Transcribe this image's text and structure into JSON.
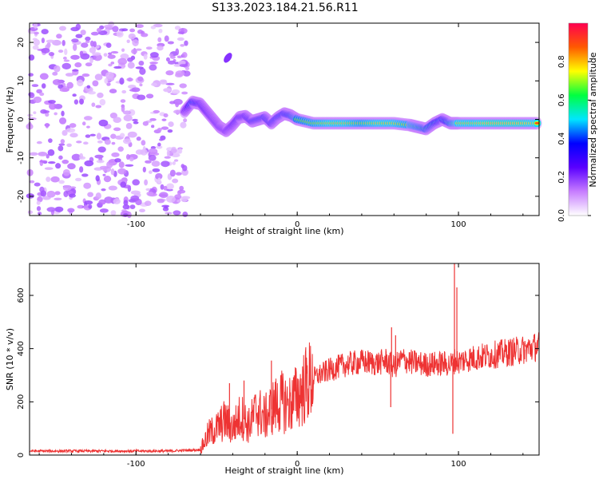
{
  "title": "S133.2023.184.21.56.R11",
  "chart_data": [
    {
      "type": "heatmap",
      "xlabel": "Height of straight line (km)",
      "ylabel": "Frequency (Hz)",
      "xlim": [
        -166,
        150
      ],
      "ylim": [
        -25,
        25
      ],
      "xticks": [
        -100,
        0,
        100
      ],
      "yticks": [
        -20,
        -10,
        0,
        10,
        20
      ],
      "colorbar": {
        "label": "Normalized spectral amplitude",
        "range": [
          0,
          1
        ],
        "ticks": [
          "0.0",
          "0.2",
          "0.4",
          "0.6",
          "0.8"
        ],
        "colormap": [
          "#ffffff",
          "#c77dff",
          "#5a00ff",
          "#0000ff",
          "#00e6ff",
          "#00ff40",
          "#ffff00",
          "#ff5a00",
          "#ff0050"
        ]
      },
      "noise_region": {
        "x": [
          -166,
          -68
        ],
        "amplitude": "low"
      },
      "ridge": {
        "x": [
          -70,
          -65,
          -60,
          -56,
          -52,
          -48,
          -44,
          -40,
          -36,
          -32,
          -28,
          -24,
          -20,
          -16,
          -12,
          -8,
          -4,
          0,
          10,
          20,
          30,
          40,
          50,
          60,
          70,
          75,
          80,
          85,
          90,
          95,
          100,
          110,
          120,
          130,
          140,
          150
        ],
        "y": [
          2,
          4.5,
          4,
          2,
          0,
          -2,
          -3,
          -1.5,
          0.5,
          0.8,
          -0.5,
          0,
          0.5,
          -1,
          0.5,
          1.5,
          1,
          0,
          -1,
          -1,
          -1,
          -1,
          -1,
          -1,
          -1.5,
          -2,
          -2.5,
          -1,
          0,
          -1,
          -1,
          -1,
          -1,
          -1,
          -1,
          -1
        ],
        "amplitude": [
          0.3,
          0.6,
          0.5,
          0.45,
          0.4,
          0.4,
          0.4,
          0.45,
          0.5,
          0.5,
          0.55,
          0.6,
          0.6,
          0.55,
          0.6,
          0.65,
          0.7,
          0.8,
          0.85,
          0.9,
          0.9,
          0.85,
          0.9,
          0.9,
          0.85,
          0.8,
          0.75,
          0.7,
          0.6,
          0.75,
          0.9,
          0.9,
          0.95,
          0.95,
          0.95,
          0.9
        ]
      },
      "isolated_blob": {
        "x": -43,
        "y": 16
      }
    },
    {
      "type": "line",
      "xlabel": "Height of straight line (km)",
      "ylabel": "SNR (10 * v/v)",
      "xlim": [
        -166,
        150
      ],
      "ylim": [
        0,
        720
      ],
      "xticks": [
        -100,
        0,
        100
      ],
      "yticks": [
        0,
        200,
        400,
        600
      ],
      "color": "#ee3333",
      "x": [
        -166,
        -140,
        -120,
        -100,
        -80,
        -60,
        -55,
        -50,
        -45,
        -40,
        -35,
        -30,
        -25,
        -20,
        -15,
        -10,
        -5,
        0,
        5,
        10,
        20,
        30,
        40,
        50,
        55,
        60,
        65,
        70,
        80,
        90,
        95,
        98,
        100,
        105,
        110,
        120,
        130,
        140,
        150
      ],
      "y": [
        15,
        15,
        15,
        15,
        15,
        20,
        80,
        100,
        130,
        100,
        150,
        110,
        170,
        140,
        180,
        200,
        190,
        220,
        260,
        290,
        320,
        340,
        350,
        345,
        355,
        330,
        360,
        350,
        340,
        345,
        340,
        355,
        350,
        360,
        365,
        375,
        385,
        395,
        410
      ],
      "spikes": [
        {
          "x": -42,
          "y": 270
        },
        {
          "x": -33,
          "y": 280
        },
        {
          "x": -16,
          "y": 355
        },
        {
          "x": 58,
          "y": 180
        },
        {
          "x": 58.5,
          "y": 480
        },
        {
          "x": 61,
          "y": 450
        },
        {
          "x": 88,
          "y": 310
        },
        {
          "x": 96.5,
          "y": 80
        },
        {
          "x": 97.5,
          "y": 720
        },
        {
          "x": 99,
          "y": 630
        },
        {
          "x": 141,
          "y": 360
        }
      ]
    }
  ]
}
